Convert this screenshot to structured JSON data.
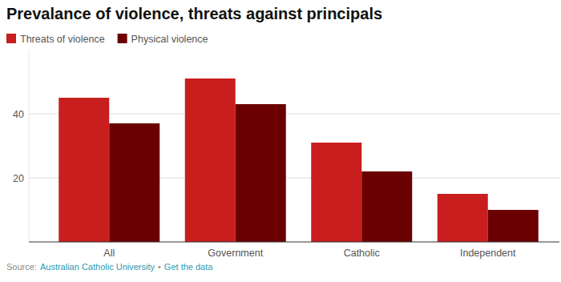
{
  "chart_data": {
    "type": "bar",
    "title": "Prevalance of violence, threats against principals",
    "categories": [
      "All",
      "Government",
      "Catholic",
      "Independent"
    ],
    "series": [
      {
        "name": "Threats of violence",
        "color": "#c81e1e",
        "values": [
          45,
          51,
          31,
          15
        ]
      },
      {
        "name": "Physical violence",
        "color": "#6b0000",
        "values": [
          37,
          43,
          22,
          10
        ]
      }
    ],
    "ylim": [
      0,
      60
    ],
    "yticks": [
      20,
      40
    ],
    "grid": true,
    "legend": "top-left",
    "footer": [
      "Source:",
      "Australian Catholic University",
      "•",
      "Get the data"
    ]
  }
}
